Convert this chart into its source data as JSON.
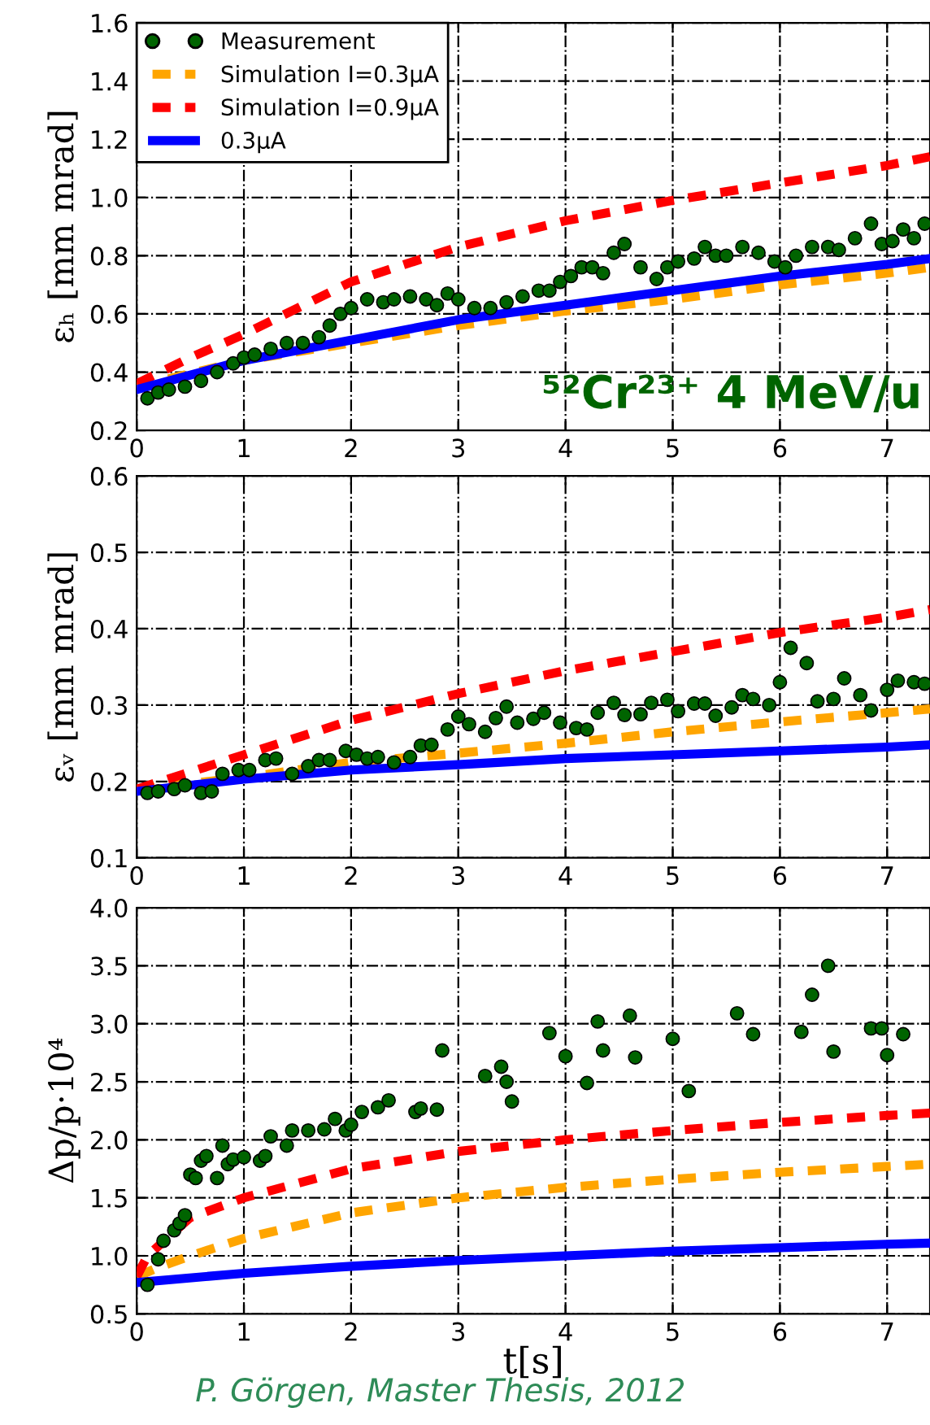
{
  "chart_data": [
    {
      "type": "scatter",
      "ylabel": "εₕ [mm mrad]",
      "xlim": [
        0,
        7.4
      ],
      "ylim": [
        0.2,
        1.6
      ],
      "xticks": [
        0,
        1,
        2,
        3,
        4,
        5,
        6,
        7
      ],
      "yticks": [
        0.2,
        0.4,
        0.6,
        0.8,
        {
          "value": 1.0,
          "label": "1.0"
        },
        1.2,
        1.4,
        1.6
      ],
      "grid": true,
      "legend": "top left",
      "annotations": [
        "⁵²Cr²³⁺ 4 MeV/u"
      ],
      "series": [
        {
          "name": "Measurement",
          "marker": "circle",
          "color": "#006400",
          "x": [
            0.1,
            0.2,
            0.3,
            0.45,
            0.6,
            0.75,
            0.9,
            1.0,
            1.1,
            1.25,
            1.4,
            1.55,
            1.7,
            1.8,
            1.9,
            2.0,
            2.15,
            2.3,
            2.4,
            2.55,
            2.7,
            2.8,
            2.9,
            3.0,
            3.15,
            3.3,
            3.45,
            3.6,
            3.75,
            3.85,
            3.95,
            4.05,
            4.15,
            4.25,
            4.35,
            4.45,
            4.55,
            4.7,
            4.85,
            4.95,
            5.05,
            5.2,
            5.3,
            5.4,
            5.5,
            5.65,
            5.8,
            5.95,
            6.05,
            6.15,
            6.3,
            6.45,
            6.55,
            6.7,
            6.85,
            6.95,
            7.05,
            7.15,
            7.25,
            7.35
          ],
          "values": [
            0.31,
            0.33,
            0.34,
            0.35,
            0.37,
            0.4,
            0.43,
            0.45,
            0.46,
            0.48,
            0.5,
            0.5,
            0.52,
            0.56,
            0.6,
            0.62,
            0.65,
            0.64,
            0.65,
            0.66,
            0.65,
            0.63,
            0.67,
            0.65,
            0.62,
            0.62,
            0.64,
            0.66,
            0.68,
            0.68,
            0.71,
            0.73,
            0.76,
            0.76,
            0.74,
            0.81,
            0.84,
            0.76,
            0.72,
            0.76,
            0.78,
            0.79,
            0.83,
            0.8,
            0.8,
            0.83,
            0.81,
            0.78,
            0.76,
            0.8,
            0.83,
            0.83,
            0.82,
            0.86,
            0.91,
            0.84,
            0.85,
            0.89,
            0.86,
            0.91
          ]
        },
        {
          "name": "Simulation I=0.3μA",
          "type": "line",
          "line_style": "dashed",
          "color": "#ffa500",
          "x": [
            0,
            1,
            2,
            3,
            4,
            5,
            6,
            7,
            7.4
          ],
          "values": [
            0.35,
            0.44,
            0.5,
            0.56,
            0.61,
            0.65,
            0.7,
            0.74,
            0.76
          ]
        },
        {
          "name": "Simulation I=0.9μA",
          "type": "line",
          "line_style": "dashed",
          "color": "#ff0000",
          "x": [
            0,
            0.5,
            1,
            2,
            3,
            4,
            5,
            6,
            7,
            7.4
          ],
          "values": [
            0.36,
            0.45,
            0.53,
            0.71,
            0.83,
            0.92,
            0.99,
            1.05,
            1.11,
            1.14
          ]
        },
        {
          "name": "0.3μA",
          "type": "line",
          "line_style": "solid",
          "color": "#0000ff",
          "x": [
            0,
            1,
            2,
            3,
            4,
            5,
            6,
            7,
            7.4
          ],
          "values": [
            0.34,
            0.44,
            0.51,
            0.58,
            0.63,
            0.68,
            0.73,
            0.77,
            0.79
          ]
        }
      ]
    },
    {
      "type": "scatter",
      "ylabel": "εᵥ [mm mrad]",
      "xlim": [
        0,
        7.4
      ],
      "ylim": [
        0.1,
        0.6
      ],
      "xticks": [
        0,
        1,
        2,
        3,
        4,
        5,
        6,
        7
      ],
      "yticks": [
        0.1,
        0.2,
        0.3,
        0.4,
        0.5,
        0.6
      ],
      "grid": true,
      "series": [
        {
          "marker": "circle",
          "color": "#006400",
          "x": [
            0.1,
            0.2,
            0.35,
            0.45,
            0.6,
            0.7,
            0.8,
            0.95,
            1.05,
            1.2,
            1.3,
            1.45,
            1.6,
            1.7,
            1.8,
            1.95,
            2.05,
            2.15,
            2.25,
            2.4,
            2.55,
            2.65,
            2.75,
            2.9,
            3.0,
            3.1,
            3.25,
            3.35,
            3.45,
            3.55,
            3.7,
            3.8,
            3.95,
            4.1,
            4.2,
            4.3,
            4.45,
            4.55,
            4.7,
            4.8,
            4.95,
            5.05,
            5.2,
            5.3,
            5.4,
            5.55,
            5.65,
            5.75,
            5.9,
            6.0,
            6.1,
            6.25,
            6.35,
            6.5,
            6.6,
            6.75,
            6.85,
            7.0,
            7.1,
            7.25,
            7.35
          ],
          "values": [
            0.185,
            0.187,
            0.19,
            0.195,
            0.185,
            0.187,
            0.21,
            0.215,
            0.215,
            0.228,
            0.23,
            0.21,
            0.22,
            0.228,
            0.228,
            0.24,
            0.235,
            0.23,
            0.232,
            0.225,
            0.232,
            0.247,
            0.248,
            0.268,
            0.285,
            0.275,
            0.265,
            0.283,
            0.298,
            0.277,
            0.282,
            0.29,
            0.277,
            0.27,
            0.268,
            0.29,
            0.303,
            0.287,
            0.288,
            0.303,
            0.307,
            0.292,
            0.302,
            0.302,
            0.286,
            0.297,
            0.313,
            0.308,
            0.3,
            0.33,
            0.375,
            0.355,
            0.305,
            0.308,
            0.335,
            0.313,
            0.293,
            0.32,
            0.332,
            0.33,
            0.328
          ]
        },
        {
          "type": "line",
          "line_style": "dashed",
          "color": "#ffa500",
          "x": [
            0,
            1,
            2,
            3,
            4,
            5,
            6,
            7,
            7.4
          ],
          "values": [
            0.19,
            0.205,
            0.225,
            0.237,
            0.25,
            0.265,
            0.278,
            0.29,
            0.295
          ]
        },
        {
          "type": "line",
          "line_style": "dashed",
          "color": "#ff0000",
          "x": [
            0,
            1,
            2,
            3,
            4,
            5,
            6,
            7,
            7.4
          ],
          "values": [
            0.19,
            0.235,
            0.28,
            0.315,
            0.345,
            0.37,
            0.395,
            0.415,
            0.425
          ]
        },
        {
          "type": "line",
          "line_style": "solid",
          "color": "#0000ff",
          "x": [
            0,
            1,
            2,
            3,
            4,
            5,
            6,
            7,
            7.4
          ],
          "values": [
            0.187,
            0.203,
            0.215,
            0.222,
            0.23,
            0.235,
            0.24,
            0.245,
            0.248
          ]
        }
      ]
    },
    {
      "type": "scatter",
      "ylabel": "Δp/p·10⁴",
      "xlabel": "t[s]",
      "xlim": [
        0,
        7.4
      ],
      "ylim": [
        0.5,
        4.0
      ],
      "xticks": [
        0,
        1,
        2,
        3,
        4,
        5,
        6,
        7
      ],
      "yticks": [
        {
          "value": 0.5,
          "label": "0.5"
        },
        {
          "value": 1.0,
          "label": "1.0"
        },
        {
          "value": 1.5,
          "label": "1.5"
        },
        {
          "value": 2.0,
          "label": "2.0"
        },
        {
          "value": 2.5,
          "label": "2.5"
        },
        {
          "value": 3.0,
          "label": "3.0"
        },
        {
          "value": 3.5,
          "label": "3.5"
        },
        {
          "value": 4.0,
          "label": "4.0"
        }
      ],
      "grid": true,
      "annotations": [
        "P. Görgen, Master Thesis, 2012"
      ],
      "series": [
        {
          "marker": "circle",
          "color": "#006400",
          "x": [
            0.1,
            0.2,
            0.25,
            0.35,
            0.4,
            0.45,
            0.5,
            0.55,
            0.6,
            0.65,
            0.75,
            0.8,
            0.85,
            0.9,
            1.0,
            1.15,
            1.2,
            1.25,
            1.4,
            1.45,
            1.6,
            1.75,
            1.85,
            1.95,
            2.0,
            2.1,
            2.25,
            2.35,
            2.6,
            2.65,
            2.8,
            2.85,
            3.25,
            3.4,
            3.45,
            3.5,
            3.85,
            4.0,
            4.2,
            4.3,
            4.35,
            4.6,
            4.65,
            5.0,
            5.15,
            5.6,
            5.75,
            6.2,
            6.3,
            6.45,
            6.5,
            6.85,
            6.95,
            7.0,
            7.15
          ],
          "values": [
            0.75,
            0.97,
            1.13,
            1.22,
            1.28,
            1.35,
            1.7,
            1.67,
            1.82,
            1.86,
            1.67,
            1.95,
            1.79,
            1.83,
            1.85,
            1.82,
            1.86,
            2.03,
            1.95,
            2.08,
            2.08,
            2.09,
            2.18,
            2.08,
            2.13,
            2.24,
            2.28,
            2.34,
            2.24,
            2.27,
            2.26,
            2.77,
            2.55,
            2.63,
            2.5,
            2.33,
            2.92,
            2.72,
            2.49,
            3.02,
            2.77,
            3.07,
            2.71,
            2.87,
            2.42,
            3.09,
            2.91,
            2.93,
            3.25,
            3.5,
            2.76,
            2.96,
            2.96,
            2.73,
            2.91
          ]
        },
        {
          "type": "line",
          "line_style": "dashed",
          "color": "#ffa500",
          "x": [
            0,
            0.2,
            0.5,
            1,
            2,
            3,
            4,
            5,
            6,
            7,
            7.4
          ],
          "values": [
            0.82,
            0.9,
            1.0,
            1.15,
            1.37,
            1.5,
            1.59,
            1.66,
            1.72,
            1.77,
            1.79
          ]
        },
        {
          "type": "line",
          "line_style": "dashed",
          "color": "#ff0000",
          "x": [
            0,
            0.1,
            0.5,
            1,
            2,
            3,
            4,
            5,
            6,
            7,
            7.4
          ],
          "values": [
            0.82,
            1.0,
            1.33,
            1.5,
            1.75,
            1.9,
            2.0,
            2.08,
            2.15,
            2.21,
            2.23
          ]
        },
        {
          "type": "line",
          "line_style": "solid",
          "color": "#0000ff",
          "x": [
            0,
            1,
            2,
            3,
            4,
            5,
            6,
            7,
            7.4
          ],
          "values": [
            0.77,
            0.85,
            0.91,
            0.96,
            1.0,
            1.04,
            1.07,
            1.1,
            1.11
          ]
        }
      ]
    }
  ]
}
